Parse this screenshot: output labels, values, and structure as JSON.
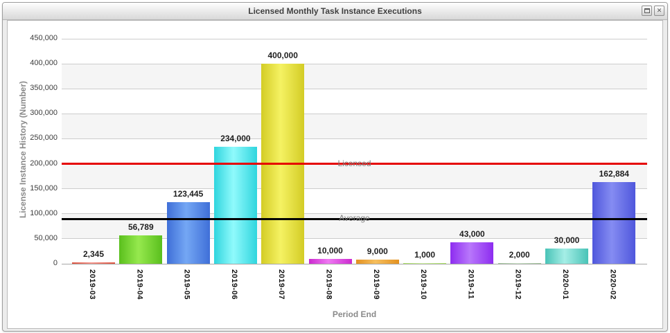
{
  "window": {
    "title": "Licensed Monthly Task Instance Executions",
    "controls": [
      {
        "name": "maximize"
      },
      {
        "name": "close",
        "glyph": "✕"
      }
    ]
  },
  "chart_data": {
    "type": "bar",
    "title": "Licensed Monthly Task Instance Executions",
    "xlabel": "Period End",
    "ylabel": "License Instance History (Number)",
    "categories": [
      "2019-03",
      "2019-04",
      "2019-05",
      "2019-06",
      "2019-07",
      "2019-08",
      "2019-09",
      "2019-10",
      "2019-11",
      "2019-12",
      "2020-01",
      "2020-02"
    ],
    "values": [
      2345,
      56789,
      123445,
      234000,
      400000,
      10000,
      9000,
      1000,
      43000,
      2000,
      30000,
      162884
    ],
    "value_labels": [
      "2,345",
      "56,789",
      "123,445",
      "234,000",
      "400,000",
      "10,000",
      "9,000",
      "1,000",
      "43,000",
      "2,000",
      "30,000",
      "162,884"
    ],
    "bar_colors": [
      {
        "base": "#dd5340",
        "light": "#f5948a"
      },
      {
        "base": "#5abf1d",
        "light": "#96e94e"
      },
      {
        "base": "#3f6fd8",
        "light": "#74a7f4"
      },
      {
        "base": "#2fd5de",
        "light": "#90fafc"
      },
      {
        "base": "#d3cc25",
        "light": "#f5f263"
      },
      {
        "base": "#cb29cf",
        "light": "#ef79f2"
      },
      {
        "base": "#e39120",
        "light": "#f6bf5e"
      },
      {
        "base": "#a8e45c",
        "light": "#d2f7a2"
      },
      {
        "base": "#8d2cf0",
        "light": "#b877fb"
      },
      {
        "base": "#9cc195",
        "light": "#cfe8cb"
      },
      {
        "base": "#49c3b7",
        "light": "#a5eee6"
      },
      {
        "base": "#4f57dc",
        "light": "#858cf2"
      }
    ],
    "ylim": [
      0,
      450000
    ],
    "y_tick_step": 50000,
    "y_tick_labels": [
      "0",
      "50,000",
      "100,000",
      "150,000",
      "200,000",
      "250,000",
      "300,000",
      "350,000",
      "400,000",
      "450,000"
    ],
    "grid": {
      "horizontal": true,
      "alternating_bands": true,
      "band_colors": [
        "#ffffff",
        "#f5f5f5"
      ],
      "gridline_color": "#cccccc"
    },
    "reference_lines": [
      {
        "label": "Licensed",
        "value": 200000,
        "color": "#e60000"
      },
      {
        "label": "Average",
        "value": 89539,
        "color": "#000000"
      }
    ],
    "legend": "none"
  }
}
